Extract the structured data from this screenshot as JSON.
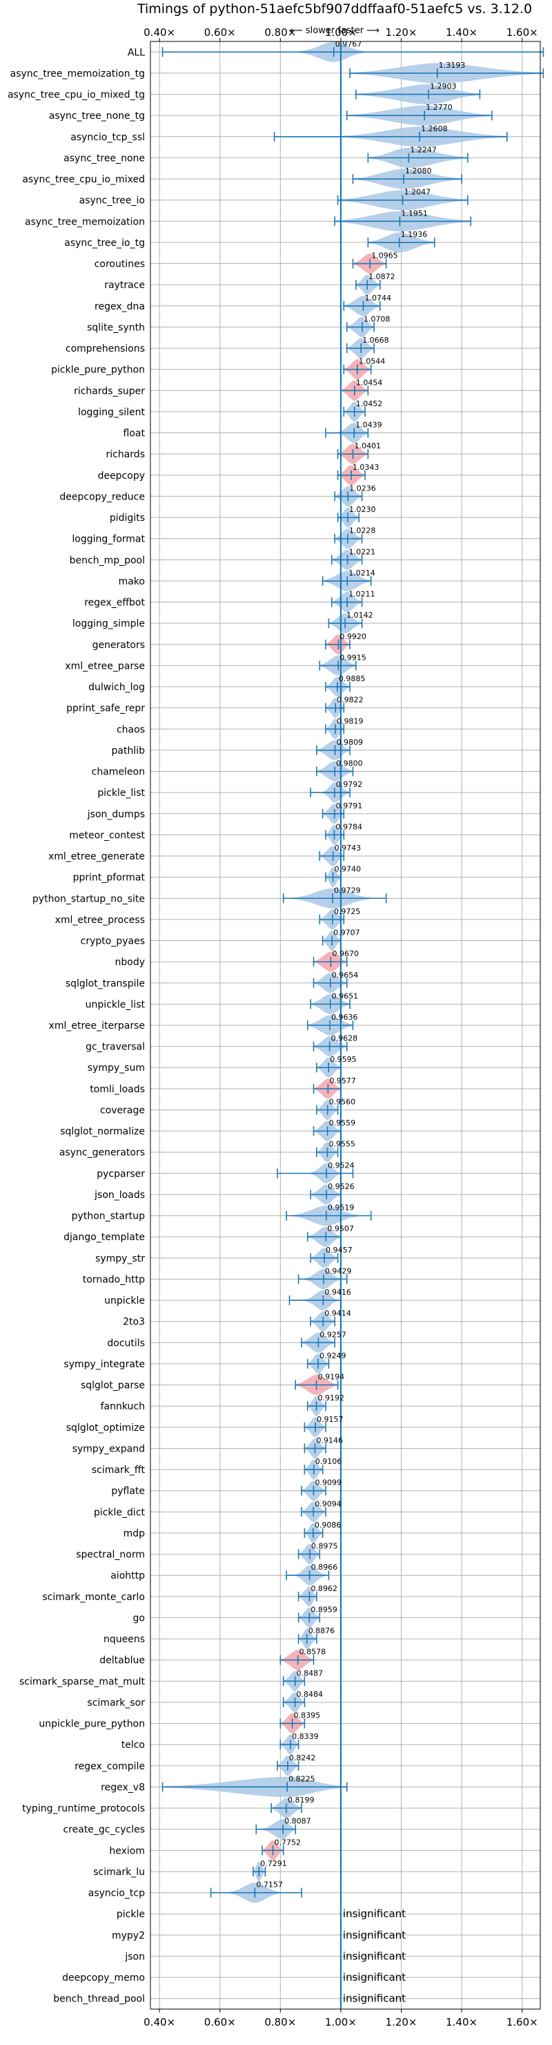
{
  "chart_data": {
    "type": "violin",
    "title": "Timings of python-51aefc5bf907ddffaaf0-51aefc5 vs. 3.12.0",
    "subtitle": "⟵ slower   faster ⟶",
    "xlim": [
      0.37,
      1.66
    ],
    "xticks": [
      "0.40×",
      "0.60×",
      "0.80×",
      "1.00×",
      "1.20×",
      "1.40×",
      "1.60×"
    ],
    "xtick_values": [
      0.4,
      0.6,
      0.8,
      1.0,
      1.2,
      1.4,
      1.6
    ],
    "reference_line": 1.0,
    "grid": true,
    "colors": {
      "normal": "#a9c8e6",
      "highlight": "#f2a6ab",
      "line": "#1f77b4",
      "grid": "#b0b0b0"
    },
    "insignificant_label": "insignificant",
    "benchmarks": [
      {
        "name": "ALL",
        "label": "0.9767",
        "median": 0.9767,
        "lo": 0.41,
        "hi": 1.67,
        "v_lo": 0.86,
        "v_hi": 1.08,
        "hl": false
      },
      {
        "name": "async_tree_memoization_tg",
        "label": "1.3193",
        "median": 1.3193,
        "lo": 1.03,
        "hi": 1.67,
        "v_lo": 1.03,
        "v_hi": 1.67,
        "hl": false
      },
      {
        "name": "async_tree_cpu_io_mixed_tg",
        "label": "1.2903",
        "median": 1.2903,
        "lo": 1.05,
        "hi": 1.46,
        "v_lo": 1.05,
        "v_hi": 1.46,
        "hl": false
      },
      {
        "name": "async_tree_none_tg",
        "label": "1.2770",
        "median": 1.277,
        "lo": 1.02,
        "hi": 1.5,
        "v_lo": 1.02,
        "v_hi": 1.5,
        "hl": false
      },
      {
        "name": "asyncio_tcp_ssl",
        "label": "1.2608",
        "median": 1.2608,
        "lo": 0.78,
        "hi": 1.55,
        "v_lo": 1.0,
        "v_hi": 1.55,
        "hl": false
      },
      {
        "name": "async_tree_none",
        "label": "1.2247",
        "median": 1.2247,
        "lo": 1.09,
        "hi": 1.42,
        "v_lo": 1.09,
        "v_hi": 1.42,
        "hl": false
      },
      {
        "name": "async_tree_cpu_io_mixed",
        "label": "1.2080",
        "median": 1.208,
        "lo": 1.04,
        "hi": 1.4,
        "v_lo": 1.04,
        "v_hi": 1.4,
        "hl": false
      },
      {
        "name": "async_tree_io",
        "label": "1.2047",
        "median": 1.2047,
        "lo": 0.99,
        "hi": 1.42,
        "v_lo": 0.99,
        "v_hi": 1.42,
        "hl": false
      },
      {
        "name": "async_tree_memoization",
        "label": "1.1951",
        "median": 1.1951,
        "lo": 0.98,
        "hi": 1.43,
        "v_lo": 0.98,
        "v_hi": 1.43,
        "hl": false
      },
      {
        "name": "async_tree_io_tg",
        "label": "1.1936",
        "median": 1.1936,
        "lo": 1.09,
        "hi": 1.31,
        "v_lo": 1.09,
        "v_hi": 1.31,
        "hl": false
      },
      {
        "name": "coroutines",
        "label": "1.0965",
        "median": 1.0965,
        "lo": 1.04,
        "hi": 1.15,
        "v_lo": 1.04,
        "v_hi": 1.15,
        "hl": true
      },
      {
        "name": "raytrace",
        "label": "1.0872",
        "median": 1.0872,
        "lo": 1.05,
        "hi": 1.13,
        "v_lo": 1.05,
        "v_hi": 1.13,
        "hl": false
      },
      {
        "name": "regex_dna",
        "label": "1.0744",
        "median": 1.0744,
        "lo": 1.01,
        "hi": 1.13,
        "v_lo": 1.01,
        "v_hi": 1.13,
        "hl": false
      },
      {
        "name": "sqlite_synth",
        "label": "1.0708",
        "median": 1.0708,
        "lo": 1.02,
        "hi": 1.11,
        "v_lo": 1.02,
        "v_hi": 1.11,
        "hl": false
      },
      {
        "name": "comprehensions",
        "label": "1.0668",
        "median": 1.0668,
        "lo": 1.02,
        "hi": 1.11,
        "v_lo": 1.02,
        "v_hi": 1.11,
        "hl": false
      },
      {
        "name": "pickle_pure_python",
        "label": "1.0544",
        "median": 1.0544,
        "lo": 1.01,
        "hi": 1.1,
        "v_lo": 1.01,
        "v_hi": 1.1,
        "hl": true
      },
      {
        "name": "richards_super",
        "label": "1.0454",
        "median": 1.0454,
        "lo": 1.0,
        "hi": 1.09,
        "v_lo": 1.0,
        "v_hi": 1.09,
        "hl": true
      },
      {
        "name": "logging_silent",
        "label": "1.0452",
        "median": 1.0452,
        "lo": 1.01,
        "hi": 1.08,
        "v_lo": 1.01,
        "v_hi": 1.08,
        "hl": false
      },
      {
        "name": "float",
        "label": "1.0439",
        "median": 1.0439,
        "lo": 0.95,
        "hi": 1.09,
        "v_lo": 0.99,
        "v_hi": 1.09,
        "hl": false
      },
      {
        "name": "richards",
        "label": "1.0401",
        "median": 1.0401,
        "lo": 0.99,
        "hi": 1.09,
        "v_lo": 0.99,
        "v_hi": 1.09,
        "hl": true
      },
      {
        "name": "deepcopy",
        "label": "1.0343",
        "median": 1.0343,
        "lo": 0.99,
        "hi": 1.08,
        "v_lo": 0.99,
        "v_hi": 1.08,
        "hl": true
      },
      {
        "name": "deepcopy_reduce",
        "label": "1.0236",
        "median": 1.0236,
        "lo": 0.98,
        "hi": 1.07,
        "v_lo": 0.98,
        "v_hi": 1.07,
        "hl": false
      },
      {
        "name": "pidigits",
        "label": "1.0230",
        "median": 1.023,
        "lo": 0.99,
        "hi": 1.06,
        "v_lo": 0.99,
        "v_hi": 1.06,
        "hl": false
      },
      {
        "name": "logging_format",
        "label": "1.0228",
        "median": 1.0228,
        "lo": 0.98,
        "hi": 1.07,
        "v_lo": 0.98,
        "v_hi": 1.07,
        "hl": false
      },
      {
        "name": "bench_mp_pool",
        "label": "1.0221",
        "median": 1.0221,
        "lo": 0.97,
        "hi": 1.07,
        "v_lo": 0.97,
        "v_hi": 1.07,
        "hl": false
      },
      {
        "name": "mako",
        "label": "1.0214",
        "median": 1.0214,
        "lo": 0.94,
        "hi": 1.1,
        "v_lo": 0.94,
        "v_hi": 1.1,
        "hl": false
      },
      {
        "name": "regex_effbot",
        "label": "1.0211",
        "median": 1.0211,
        "lo": 0.97,
        "hi": 1.07,
        "v_lo": 0.97,
        "v_hi": 1.07,
        "hl": false
      },
      {
        "name": "logging_simple",
        "label": "1.0142",
        "median": 1.0142,
        "lo": 0.96,
        "hi": 1.07,
        "v_lo": 0.96,
        "v_hi": 1.07,
        "hl": false
      },
      {
        "name": "generators",
        "label": "0.9920",
        "median": 0.992,
        "lo": 0.95,
        "hi": 1.03,
        "v_lo": 0.95,
        "v_hi": 1.03,
        "hl": true
      },
      {
        "name": "xml_etree_parse",
        "label": "0.9915",
        "median": 0.9915,
        "lo": 0.93,
        "hi": 1.05,
        "v_lo": 0.93,
        "v_hi": 1.05,
        "hl": false
      },
      {
        "name": "dulwich_log",
        "label": "0.9885",
        "median": 0.9885,
        "lo": 0.95,
        "hi": 1.03,
        "v_lo": 0.95,
        "v_hi": 1.03,
        "hl": false
      },
      {
        "name": "pprint_safe_repr",
        "label": "0.9822",
        "median": 0.9822,
        "lo": 0.95,
        "hi": 1.01,
        "v_lo": 0.95,
        "v_hi": 1.01,
        "hl": false
      },
      {
        "name": "chaos",
        "label": "0.9819",
        "median": 0.9819,
        "lo": 0.95,
        "hi": 1.01,
        "v_lo": 0.95,
        "v_hi": 1.01,
        "hl": false
      },
      {
        "name": "pathlib",
        "label": "0.9809",
        "median": 0.9809,
        "lo": 0.92,
        "hi": 1.03,
        "v_lo": 0.92,
        "v_hi": 1.03,
        "hl": false
      },
      {
        "name": "chameleon",
        "label": "0.9800",
        "median": 0.98,
        "lo": 0.92,
        "hi": 1.04,
        "v_lo": 0.92,
        "v_hi": 1.04,
        "hl": false
      },
      {
        "name": "pickle_list",
        "label": "0.9792",
        "median": 0.9792,
        "lo": 0.9,
        "hi": 1.03,
        "v_lo": 0.94,
        "v_hi": 1.03,
        "hl": false
      },
      {
        "name": "json_dumps",
        "label": "0.9791",
        "median": 0.9791,
        "lo": 0.94,
        "hi": 1.01,
        "v_lo": 0.94,
        "v_hi": 1.01,
        "hl": false
      },
      {
        "name": "meteor_contest",
        "label": "0.9784",
        "median": 0.9784,
        "lo": 0.95,
        "hi": 1.01,
        "v_lo": 0.95,
        "v_hi": 1.01,
        "hl": false
      },
      {
        "name": "xml_etree_generate",
        "label": "0.9743",
        "median": 0.9743,
        "lo": 0.93,
        "hi": 1.01,
        "v_lo": 0.93,
        "v_hi": 1.01,
        "hl": false
      },
      {
        "name": "pprint_pformat",
        "label": "0.9740",
        "median": 0.974,
        "lo": 0.95,
        "hi": 1.0,
        "v_lo": 0.95,
        "v_hi": 1.0,
        "hl": false
      },
      {
        "name": "python_startup_no_site",
        "label": "0.9729",
        "median": 0.9729,
        "lo": 0.81,
        "hi": 1.15,
        "v_lo": 0.84,
        "v_hi": 1.1,
        "hl": false
      },
      {
        "name": "xml_etree_process",
        "label": "0.9725",
        "median": 0.9725,
        "lo": 0.93,
        "hi": 1.01,
        "v_lo": 0.93,
        "v_hi": 1.01,
        "hl": false
      },
      {
        "name": "crypto_pyaes",
        "label": "0.9707",
        "median": 0.9707,
        "lo": 0.94,
        "hi": 1.0,
        "v_lo": 0.94,
        "v_hi": 1.0,
        "hl": false
      },
      {
        "name": "nbody",
        "label": "0.9670",
        "median": 0.967,
        "lo": 0.91,
        "hi": 1.02,
        "v_lo": 0.91,
        "v_hi": 1.02,
        "hl": true
      },
      {
        "name": "sqlglot_transpile",
        "label": "0.9654",
        "median": 0.9654,
        "lo": 0.91,
        "hi": 1.02,
        "v_lo": 0.91,
        "v_hi": 1.02,
        "hl": false
      },
      {
        "name": "unpickle_list",
        "label": "0.9651",
        "median": 0.9651,
        "lo": 0.9,
        "hi": 1.03,
        "v_lo": 0.9,
        "v_hi": 1.03,
        "hl": false
      },
      {
        "name": "xml_etree_iterparse",
        "label": "0.9636",
        "median": 0.9636,
        "lo": 0.89,
        "hi": 1.04,
        "v_lo": 0.89,
        "v_hi": 1.04,
        "hl": false
      },
      {
        "name": "gc_traversal",
        "label": "0.9628",
        "median": 0.9628,
        "lo": 0.91,
        "hi": 1.02,
        "v_lo": 0.91,
        "v_hi": 1.02,
        "hl": false
      },
      {
        "name": "sympy_sum",
        "label": "0.9595",
        "median": 0.9595,
        "lo": 0.92,
        "hi": 1.0,
        "v_lo": 0.92,
        "v_hi": 1.0,
        "hl": false
      },
      {
        "name": "tomli_loads",
        "label": "0.9577",
        "median": 0.9577,
        "lo": 0.91,
        "hi": 1.0,
        "v_lo": 0.91,
        "v_hi": 1.0,
        "hl": true
      },
      {
        "name": "coverage",
        "label": "0.9560",
        "median": 0.956,
        "lo": 0.92,
        "hi": 0.99,
        "v_lo": 0.92,
        "v_hi": 0.99,
        "hl": false
      },
      {
        "name": "sqlglot_normalize",
        "label": "0.9559",
        "median": 0.9559,
        "lo": 0.91,
        "hi": 1.0,
        "v_lo": 0.91,
        "v_hi": 1.0,
        "hl": false
      },
      {
        "name": "async_generators",
        "label": "0.9555",
        "median": 0.9555,
        "lo": 0.92,
        "hi": 0.99,
        "v_lo": 0.92,
        "v_hi": 0.99,
        "hl": false
      },
      {
        "name": "pycparser",
        "label": "0.9524",
        "median": 0.9524,
        "lo": 0.79,
        "hi": 1.04,
        "v_lo": 0.9,
        "v_hi": 1.0,
        "hl": false
      },
      {
        "name": "json_loads",
        "label": "0.9526",
        "median": 0.9526,
        "lo": 0.9,
        "hi": 1.0,
        "v_lo": 0.9,
        "v_hi": 1.0,
        "hl": false
      },
      {
        "name": "python_startup",
        "label": "0.9519",
        "median": 0.9519,
        "lo": 0.82,
        "hi": 1.1,
        "v_lo": 0.84,
        "v_hi": 1.06,
        "hl": false
      },
      {
        "name": "django_template",
        "label": "0.9507",
        "median": 0.9507,
        "lo": 0.89,
        "hi": 1.0,
        "v_lo": 0.89,
        "v_hi": 1.0,
        "hl": false
      },
      {
        "name": "sympy_str",
        "label": "0.9457",
        "median": 0.9457,
        "lo": 0.9,
        "hi": 0.99,
        "v_lo": 0.9,
        "v_hi": 0.99,
        "hl": false
      },
      {
        "name": "tornado_http",
        "label": "0.9429",
        "median": 0.9429,
        "lo": 0.86,
        "hi": 1.02,
        "v_lo": 0.88,
        "v_hi": 1.0,
        "hl": false
      },
      {
        "name": "unpickle",
        "label": "0.9416",
        "median": 0.9416,
        "lo": 0.83,
        "hi": 1.0,
        "v_lo": 0.88,
        "v_hi": 0.99,
        "hl": false
      },
      {
        "name": "2to3",
        "label": "0.9414",
        "median": 0.9414,
        "lo": 0.9,
        "hi": 0.98,
        "v_lo": 0.9,
        "v_hi": 0.98,
        "hl": false
      },
      {
        "name": "docutils",
        "label": "0.9257",
        "median": 0.9257,
        "lo": 0.87,
        "hi": 0.98,
        "v_lo": 0.87,
        "v_hi": 0.98,
        "hl": false
      },
      {
        "name": "sympy_integrate",
        "label": "0.9249",
        "median": 0.9249,
        "lo": 0.89,
        "hi": 0.96,
        "v_lo": 0.89,
        "v_hi": 0.96,
        "hl": false
      },
      {
        "name": "sqlglot_parse",
        "label": "0.9194",
        "median": 0.9194,
        "lo": 0.85,
        "hi": 0.99,
        "v_lo": 0.85,
        "v_hi": 0.99,
        "hl": true
      },
      {
        "name": "fannkuch",
        "label": "0.9192",
        "median": 0.9192,
        "lo": 0.89,
        "hi": 0.95,
        "v_lo": 0.89,
        "v_hi": 0.95,
        "hl": false
      },
      {
        "name": "sqlglot_optimize",
        "label": "0.9157",
        "median": 0.9157,
        "lo": 0.88,
        "hi": 0.95,
        "v_lo": 0.88,
        "v_hi": 0.95,
        "hl": false
      },
      {
        "name": "sympy_expand",
        "label": "0.9146",
        "median": 0.9146,
        "lo": 0.88,
        "hi": 0.95,
        "v_lo": 0.88,
        "v_hi": 0.95,
        "hl": false
      },
      {
        "name": "scimark_fft",
        "label": "0.9106",
        "median": 0.9106,
        "lo": 0.88,
        "hi": 0.94,
        "v_lo": 0.88,
        "v_hi": 0.94,
        "hl": false
      },
      {
        "name": "pyflate",
        "label": "0.9099",
        "median": 0.9099,
        "lo": 0.87,
        "hi": 0.95,
        "v_lo": 0.87,
        "v_hi": 0.95,
        "hl": false
      },
      {
        "name": "pickle_dict",
        "label": "0.9094",
        "median": 0.9094,
        "lo": 0.87,
        "hi": 0.95,
        "v_lo": 0.87,
        "v_hi": 0.95,
        "hl": false
      },
      {
        "name": "mdp",
        "label": "0.9086",
        "median": 0.9086,
        "lo": 0.88,
        "hi": 0.94,
        "v_lo": 0.88,
        "v_hi": 0.94,
        "hl": false
      },
      {
        "name": "spectral_norm",
        "label": "0.8975",
        "median": 0.8975,
        "lo": 0.86,
        "hi": 0.93,
        "v_lo": 0.86,
        "v_hi": 0.93,
        "hl": false
      },
      {
        "name": "aiohttp",
        "label": "0.8966",
        "median": 0.8966,
        "lo": 0.82,
        "hi": 0.96,
        "v_lo": 0.85,
        "v_hi": 0.95,
        "hl": false
      },
      {
        "name": "scimark_monte_carlo",
        "label": "0.8962",
        "median": 0.8962,
        "lo": 0.86,
        "hi": 0.92,
        "v_lo": 0.86,
        "v_hi": 0.92,
        "hl": false
      },
      {
        "name": "go",
        "label": "0.8959",
        "median": 0.8959,
        "lo": 0.86,
        "hi": 0.93,
        "v_lo": 0.86,
        "v_hi": 0.93,
        "hl": false
      },
      {
        "name": "nqueens",
        "label": "0.8876",
        "median": 0.8876,
        "lo": 0.86,
        "hi": 0.92,
        "v_lo": 0.86,
        "v_hi": 0.92,
        "hl": false
      },
      {
        "name": "deltablue",
        "label": "0.8578",
        "median": 0.8578,
        "lo": 0.8,
        "hi": 0.91,
        "v_lo": 0.8,
        "v_hi": 0.91,
        "hl": true
      },
      {
        "name": "scimark_sparse_mat_mult",
        "label": "0.8487",
        "median": 0.8487,
        "lo": 0.81,
        "hi": 0.88,
        "v_lo": 0.81,
        "v_hi": 0.88,
        "hl": false
      },
      {
        "name": "scimark_sor",
        "label": "0.8484",
        "median": 0.8484,
        "lo": 0.81,
        "hi": 0.88,
        "v_lo": 0.81,
        "v_hi": 0.88,
        "hl": false
      },
      {
        "name": "unpickle_pure_python",
        "label": "0.8395",
        "median": 0.8395,
        "lo": 0.8,
        "hi": 0.88,
        "v_lo": 0.8,
        "v_hi": 0.88,
        "hl": true
      },
      {
        "name": "telco",
        "label": "0.8339",
        "median": 0.8339,
        "lo": 0.8,
        "hi": 0.86,
        "v_lo": 0.8,
        "v_hi": 0.86,
        "hl": false
      },
      {
        "name": "regex_compile",
        "label": "0.8242",
        "median": 0.8242,
        "lo": 0.79,
        "hi": 0.86,
        "v_lo": 0.79,
        "v_hi": 0.86,
        "hl": false
      },
      {
        "name": "regex_v8",
        "label": "0.8225",
        "median": 0.8225,
        "lo": 0.41,
        "hi": 1.02,
        "v_lo": 0.41,
        "v_hi": 1.02,
        "hl": false
      },
      {
        "name": "typing_runtime_protocols",
        "label": "0.8199",
        "median": 0.8199,
        "lo": 0.77,
        "hi": 0.87,
        "v_lo": 0.77,
        "v_hi": 0.87,
        "hl": false
      },
      {
        "name": "create_gc_cycles",
        "label": "0.8087",
        "median": 0.8087,
        "lo": 0.72,
        "hi": 0.85,
        "v_lo": 0.74,
        "v_hi": 0.85,
        "hl": false
      },
      {
        "name": "hexiom",
        "label": "0.7752",
        "median": 0.7752,
        "lo": 0.74,
        "hi": 0.81,
        "v_lo": 0.74,
        "v_hi": 0.81,
        "hl": true
      },
      {
        "name": "scimark_lu",
        "label": "0.7291",
        "median": 0.7291,
        "lo": 0.71,
        "hi": 0.75,
        "v_lo": 0.71,
        "v_hi": 0.75,
        "hl": false
      },
      {
        "name": "asyncio_tcp",
        "label": "0.7157",
        "median": 0.7157,
        "lo": 0.57,
        "hi": 0.87,
        "v_lo": 0.63,
        "v_hi": 0.8,
        "hl": false
      },
      {
        "name": "pickle",
        "insignificant": true
      },
      {
        "name": "mypy2",
        "insignificant": true
      },
      {
        "name": "json",
        "insignificant": true
      },
      {
        "name": "deepcopy_memo",
        "insignificant": true
      },
      {
        "name": "bench_thread_pool",
        "insignificant": true
      }
    ]
  }
}
